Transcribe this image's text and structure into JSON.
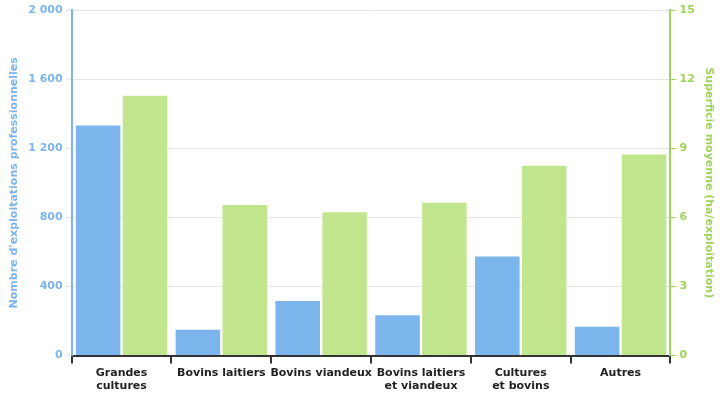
{
  "chart_data": {
    "type": "bar",
    "categories": [
      "Grandes cultures",
      "Bovins laitiers",
      "Bovins viandeux",
      "Bovins laitiers et viandeux",
      "Cultures et bovins",
      "Autres"
    ],
    "series": [
      {
        "color": "#7cb5ec",
        "values": [
          1331,
          149,
          316,
          233,
          573,
          167
        ]
      },
      {
        "color": "#c2e68e",
        "axis": "y2",
        "values": [
          11.28,
          6.54,
          6.22,
          6.63,
          8.24,
          8.73
        ]
      }
    ],
    "y_label": "Nombre d'exploitations professionnelles",
    "y2_label": "Superficie moyenne (ha/exploitation)",
    "ylim": [
      0,
      2000
    ],
    "yticks": [
      0,
      400,
      800,
      {
        "value": 1200,
        "label": "1 200"
      },
      {
        "value": 1600,
        "label": "1 600"
      },
      {
        "value": 2000,
        "label": "2 000"
      }
    ],
    "y2lim": [
      0,
      15
    ],
    "y2ticks": [
      0,
      3,
      6,
      9,
      12,
      15
    ],
    "grid": true
  }
}
